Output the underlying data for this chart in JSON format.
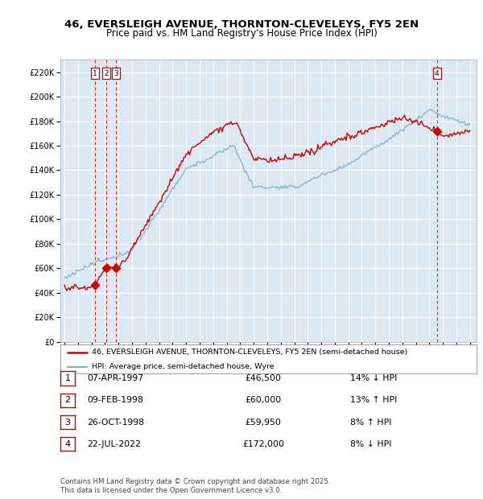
{
  "title_line1": "46, EVERSLEIGH AVENUE, THORNTON-CLEVELEYS, FY5 2EN",
  "title_line2": "Price paid vs. HM Land Registry's House Price Index (HPI)",
  "legend_line1": "46, EVERSLEIGH AVENUE, THORNTON-CLEVELEYS, FY5 2EN (semi-detached house)",
  "legend_line2": "HPI: Average price, semi-detached house, Wyre",
  "footer": "Contains HM Land Registry data © Crown copyright and database right 2025.\nThis data is licensed under the Open Government Licence v3.0.",
  "transactions": [
    {
      "num": 1,
      "date": "07-APR-1997",
      "price": "£46,500",
      "hpi": "14% ↓ HPI",
      "year": 1997.27,
      "value": 46500
    },
    {
      "num": 2,
      "date": "09-FEB-1998",
      "price": "£60,000",
      "hpi": "13% ↑ HPI",
      "year": 1998.11,
      "value": 60000
    },
    {
      "num": 3,
      "date": "26-OCT-1998",
      "price": "£59,950",
      "hpi": "8% ↑ HPI",
      "year": 1998.82,
      "value": 59950
    },
    {
      "num": 4,
      "date": "22-JUL-2022",
      "price": "£172,000",
      "hpi": "8% ↓ HPI",
      "year": 2022.56,
      "value": 172000
    }
  ],
  "red_color": "#cc0000",
  "blue_color": "#7aacce",
  "bg_plot": "#dce9f2",
  "grid_color": "#ffffff",
  "ylim": [
    0,
    230000
  ],
  "yticks": [
    0,
    20000,
    40000,
    60000,
    80000,
    100000,
    120000,
    140000,
    160000,
    180000,
    200000,
    220000
  ],
  "xlim_left": 1994.7,
  "xlim_right": 2025.5,
  "figsize": [
    6.0,
    6.2
  ],
  "dpi": 100
}
